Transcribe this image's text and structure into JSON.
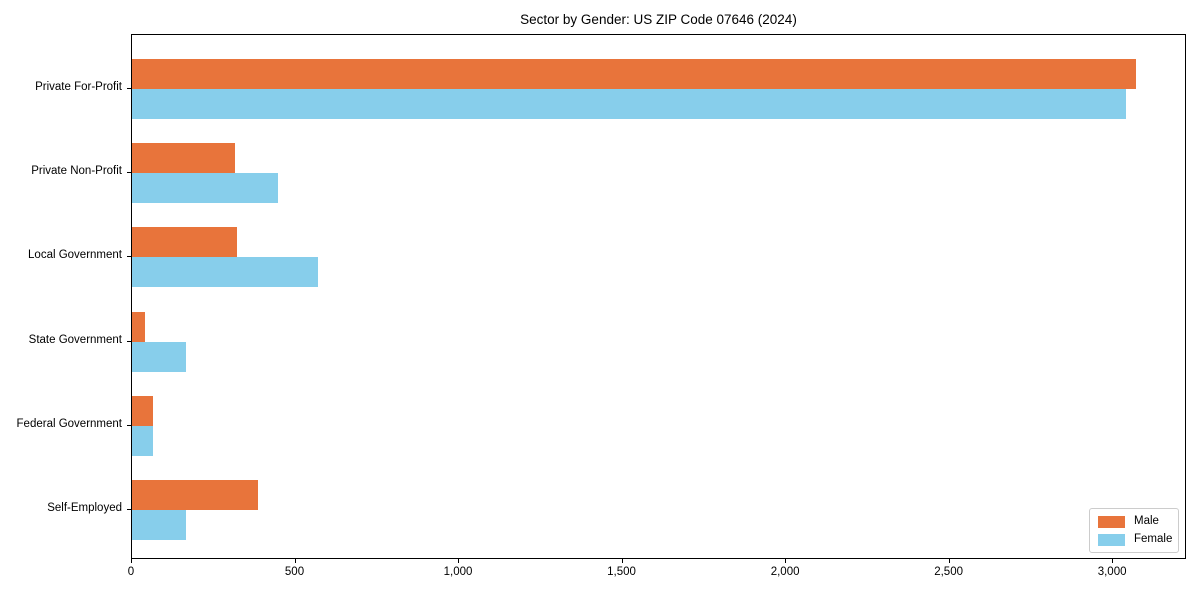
{
  "chart_data": {
    "type": "bar",
    "orientation": "horizontal",
    "title": "Sector by Gender: US ZIP Code 07646 (2024)",
    "categories": [
      "Private For-Profit",
      "Private Non-Profit",
      "Local Government",
      "State Government",
      "Federal Government",
      "Self-Employed"
    ],
    "series": [
      {
        "name": "Male",
        "color": "#e8743b",
        "values": [
          3070,
          315,
          320,
          40,
          65,
          385
        ]
      },
      {
        "name": "Female",
        "color": "#87ceeb",
        "values": [
          3040,
          445,
          570,
          165,
          63,
          165
        ]
      }
    ],
    "xlabel": "",
    "ylabel": "",
    "xlim": [
      0,
      3226
    ],
    "xticks": [
      0,
      500,
      1000,
      1500,
      2000,
      2500,
      3000
    ],
    "xtick_labels": [
      "0",
      "500",
      "1,000",
      "1,500",
      "2,000",
      "2,500",
      "3,000"
    ],
    "grid": false,
    "legend": {
      "position": "lower right",
      "entries": [
        "Male",
        "Female"
      ]
    }
  }
}
